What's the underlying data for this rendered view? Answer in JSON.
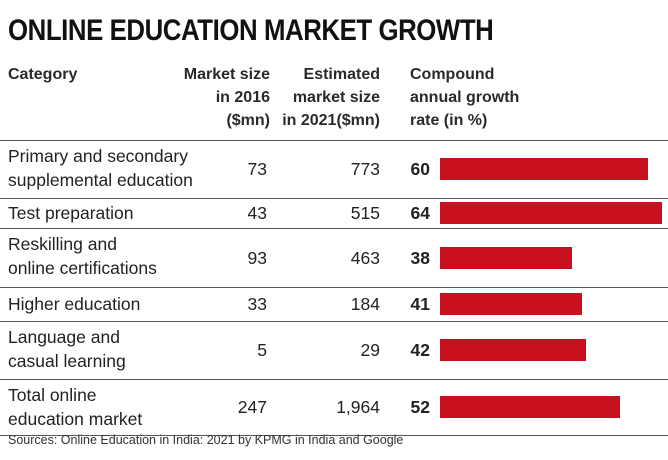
{
  "title": "ONLINE EDUCATION MARKET GROWTH",
  "headers": {
    "category": "Category",
    "market_size_2016": [
      "Market size",
      "in 2016",
      "($mn)"
    ],
    "market_size_2021": [
      "Estimated",
      "market size",
      "in 2021($mn)"
    ],
    "cagr": [
      "Compound",
      "annual growth",
      "rate (in %)"
    ]
  },
  "colors": {
    "bar": "#c8101f"
  },
  "chart_data": {
    "type": "table",
    "title": "ONLINE EDUCATION MARKET GROWTH",
    "columns": [
      "Category",
      "Market size in 2016 ($mn)",
      "Estimated market size in 2021($mn)",
      "Compound annual growth rate (in %)"
    ],
    "rows": [
      {
        "category": [
          "Primary and secondary",
          "supplemental education"
        ],
        "ms2016": "73",
        "ms2021": "773",
        "cagr": "60",
        "value": 60
      },
      {
        "category": [
          "Test preparation"
        ],
        "ms2016": "43",
        "ms2021": "515",
        "cagr": "64",
        "value": 64
      },
      {
        "category": [
          "Reskilling and",
          "online certifications"
        ],
        "ms2016": "93",
        "ms2021": "463",
        "cagr": "38",
        "value": 38
      },
      {
        "category": [
          "Higher education"
        ],
        "ms2016": "33",
        "ms2021": "184",
        "cagr": "41",
        "value": 41
      },
      {
        "category": [
          "Language and",
          "casual learning"
        ],
        "ms2016": "5",
        "ms2021": "29",
        "cagr": "42",
        "value": 42
      },
      {
        "category": [
          "Total online",
          "education market"
        ],
        "ms2016": "247",
        "ms2021": "1,964",
        "cagr": "52",
        "value": 52
      }
    ],
    "bar_max": 64
  },
  "source": "Sources: Online Education in India: 2021 by KPMG in India and Google"
}
